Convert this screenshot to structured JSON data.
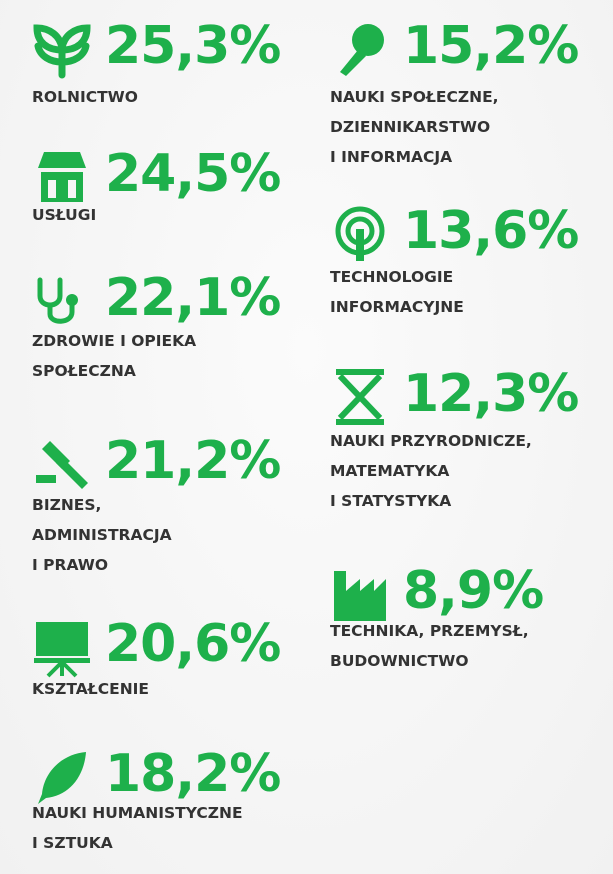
{
  "items": [
    {
      "value_label": "25,3%",
      "label": [
        "ROLNICTWO"
      ]
    },
    {
      "value_label": "24,5%",
      "label": [
        "USŁUGI"
      ]
    },
    {
      "value_label": "22,1%",
      "label": [
        "ZDROWIE I OPIEKA",
        "SPOŁECZNA"
      ]
    },
    {
      "value_label": "21,2%",
      "label": [
        "BIZNES,",
        "ADMINISTRACJA",
        "I PRAWO"
      ]
    },
    {
      "value_label": "20,6%",
      "label": [
        "KSZTAŁCENIE"
      ]
    },
    {
      "value_label": "18,2%",
      "label": [
        "NAUKI HUMANISTYCZNE",
        "I SZTUKA"
      ]
    },
    {
      "value_label": "15,2%",
      "label": [
        "NAUKI SPOŁECZNE,",
        "DZIENNIKARSTWO",
        "I INFORMACJA"
      ]
    },
    {
      "value_label": "13,6%",
      "label": [
        "TECHNOLOGIE",
        "INFORMACYJNE"
      ]
    },
    {
      "value_label": "12,3%",
      "label": [
        "NAUKI PRZYRODNICZE,",
        "MATEMATYKA",
        "I STATYSTYKA"
      ]
    },
    {
      "value_label": "8,9%",
      "label": [
        "TECHNIKA, PRZEMYSŁ,",
        "BUDOWNICTWO"
      ]
    }
  ]
}
